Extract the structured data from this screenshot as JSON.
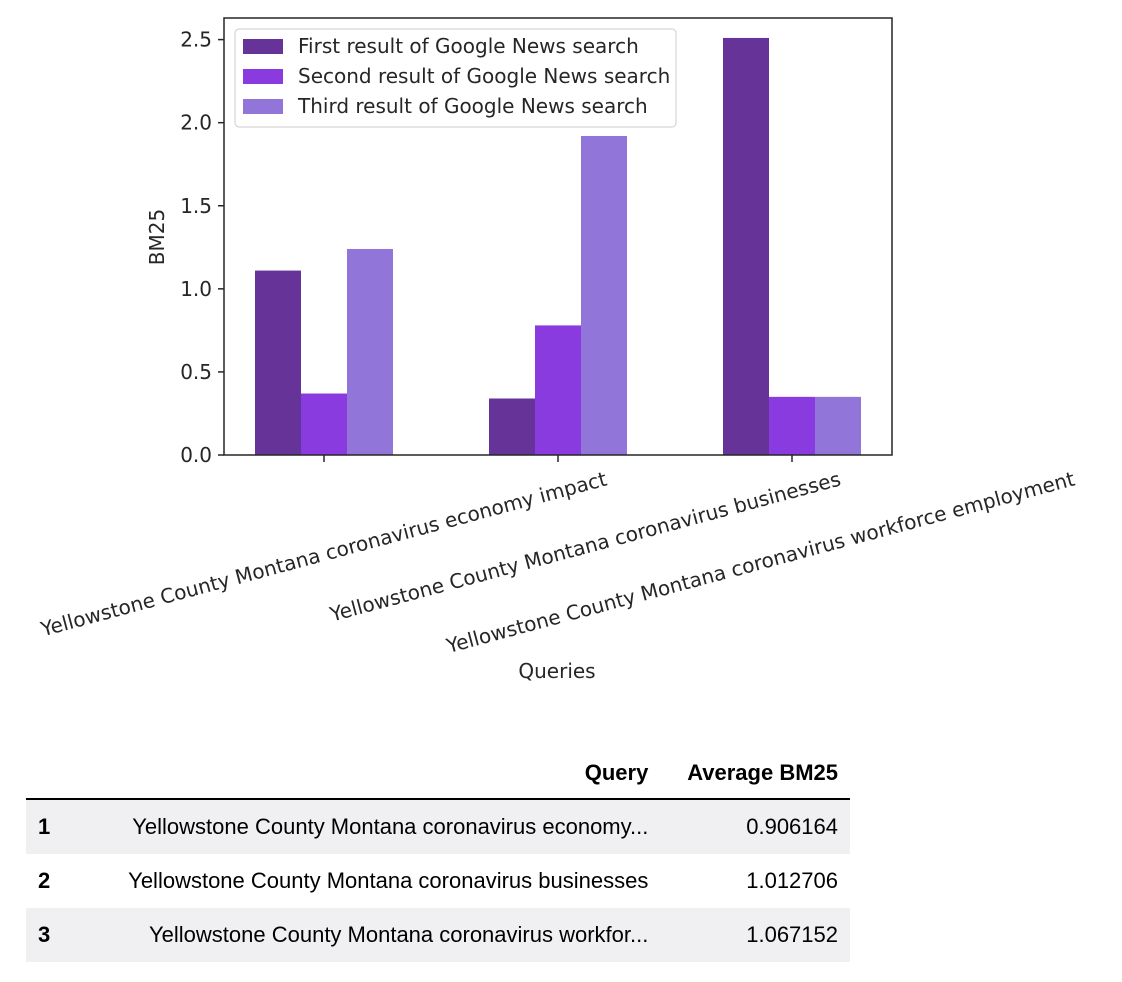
{
  "chart_data": {
    "type": "bar",
    "categories": [
      "Yellowstone County Montana coronavirus economy impact",
      "Yellowstone County Montana coronavirus businesses",
      "Yellowstone County Montana coronavirus workforce employment"
    ],
    "series": [
      {
        "name": "First result of Google News search",
        "color": "#663399",
        "values": [
          1.11,
          0.34,
          2.51
        ]
      },
      {
        "name": "Second result of Google News search",
        "color": "#8a3be0",
        "values": [
          0.37,
          0.78,
          0.35
        ]
      },
      {
        "name": "Third result of Google News search",
        "color": "#9175d9",
        "values": [
          1.24,
          1.92,
          0.35
        ]
      }
    ],
    "xlabel": "Queries",
    "ylabel": "BM25",
    "ylim": [
      0,
      2.63
    ],
    "yticks": [
      "0.0",
      "0.5",
      "1.0",
      "1.5",
      "2.0",
      "2.5"
    ],
    "legend": "top-left",
    "grid": false
  },
  "table": {
    "columns": [
      "",
      "Query",
      "Average BM25"
    ],
    "rows": [
      {
        "index": "1",
        "query": "Yellowstone County Montana coronavirus economy...",
        "avg": "0.906164"
      },
      {
        "index": "2",
        "query": "Yellowstone County Montana coronavirus businesses",
        "avg": "1.012706"
      },
      {
        "index": "3",
        "query": "Yellowstone County Montana coronavirus workfor...",
        "avg": "1.067152"
      }
    ]
  }
}
